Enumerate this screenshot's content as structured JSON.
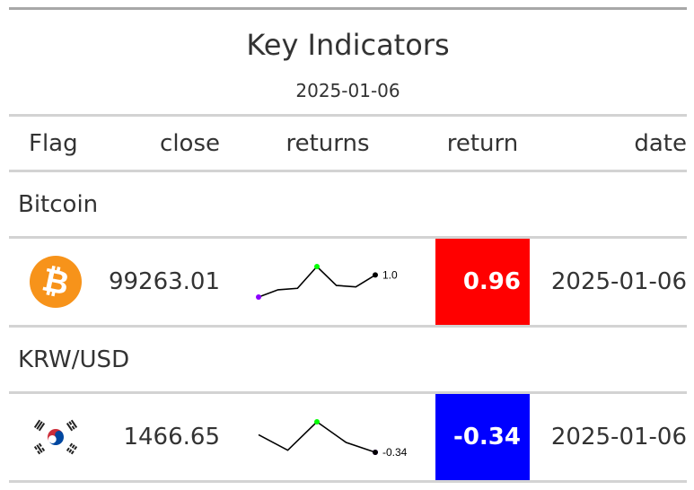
{
  "table": {
    "title": "Key Indicators",
    "subtitle": "2025-01-06",
    "columns": {
      "flag": "Flag",
      "close": "close",
      "returns": "returns",
      "return": "return",
      "date": "date"
    },
    "groups": [
      {
        "label": "Bitcoin",
        "row": {
          "flag_icon": "bitcoin-logo",
          "close": "99263.01",
          "sparkline": {
            "values": [
              0.2,
              0.45,
              0.5,
              1.25,
              0.6,
              0.55,
              0.96
            ],
            "end_label": "1.0",
            "min_color": "#8b00ff",
            "max_color": "#00ff00",
            "end_color": "#000000"
          },
          "return": "0.96",
          "return_bg": "#ff0000",
          "date": "2025-01-06"
        }
      },
      {
        "label": "KRW/USD",
        "row": {
          "flag_icon": "south-korea-flag",
          "close": "1466.65",
          "sparkline": {
            "values": [
              0.0,
              -0.3,
              0.25,
              -0.15,
              -0.34
            ],
            "end_label": "-0.34",
            "min_color": "#8b00ff",
            "max_color": "#00ff00",
            "end_color": "#000000"
          },
          "return": "-0.34",
          "return_bg": "#0000ff",
          "date": "2025-01-06"
        }
      }
    ]
  }
}
